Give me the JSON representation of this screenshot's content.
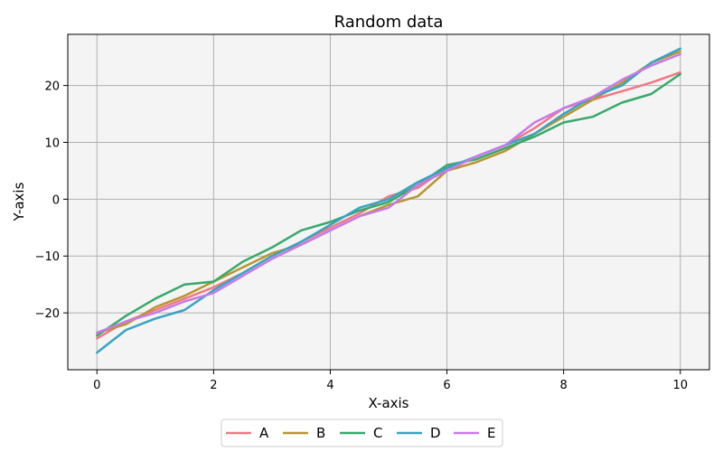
{
  "chart_data": {
    "type": "line",
    "title": "Random data",
    "xlabel": "X-axis",
    "ylabel": "Y-axis",
    "xlim": [
      -0.5,
      10.5
    ],
    "ylim": [
      -30.0,
      29.0
    ],
    "xticks": [
      0,
      2,
      4,
      6,
      8,
      10
    ],
    "yticks": [
      -20,
      -10,
      0,
      10,
      20
    ],
    "grid": true,
    "background": "#f4f4f4",
    "legend_placement": "bottom-center",
    "x": [
      0,
      0.5,
      1,
      1.5,
      2,
      2.5,
      3,
      3.5,
      4,
      4.5,
      5,
      5.5,
      6,
      6.5,
      7,
      7.5,
      8,
      8.5,
      9,
      9.5,
      10
    ],
    "series": [
      {
        "name": "A",
        "color": "#f07883",
        "values": [
          -24.5,
          -21.5,
          -19.5,
          -17.5,
          -15.5,
          -13.0,
          -10.0,
          -7.5,
          -5.0,
          -2.5,
          0.5,
          2.0,
          5.5,
          7.5,
          9.5,
          12.5,
          16.0,
          17.5,
          19.0,
          20.5,
          22.3
        ]
      },
      {
        "name": "B",
        "color": "#b8952e",
        "values": [
          -23.5,
          -22.0,
          -19.0,
          -17.0,
          -14.5,
          -12.0,
          -9.5,
          -8.0,
          -5.5,
          -3.0,
          -1.0,
          0.5,
          5.0,
          6.5,
          8.5,
          11.5,
          14.5,
          17.5,
          20.5,
          24.0,
          26.0
        ]
      },
      {
        "name": "C",
        "color": "#38a96a",
        "values": [
          -24.0,
          -20.5,
          -17.5,
          -15.0,
          -14.5,
          -11.0,
          -8.5,
          -5.5,
          -4.0,
          -2.0,
          -0.5,
          2.5,
          6.0,
          7.0,
          9.0,
          11.0,
          13.5,
          14.5,
          17.0,
          18.5,
          22.0
        ]
      },
      {
        "name": "D",
        "color": "#36a4c3",
        "values": [
          -27.0,
          -23.0,
          -21.0,
          -19.5,
          -16.0,
          -13.0,
          -10.0,
          -7.5,
          -4.5,
          -1.5,
          0.0,
          3.0,
          5.5,
          7.5,
          9.5,
          11.5,
          15.0,
          18.0,
          20.0,
          24.0,
          26.5
        ]
      },
      {
        "name": "E",
        "color": "#c77ae8",
        "values": [
          -23.5,
          -21.5,
          -20.0,
          -18.0,
          -16.5,
          -13.5,
          -10.5,
          -8.0,
          -5.5,
          -3.0,
          -1.5,
          2.5,
          5.0,
          7.5,
          9.5,
          13.5,
          16.0,
          18.0,
          21.0,
          23.5,
          25.5
        ]
      }
    ]
  }
}
